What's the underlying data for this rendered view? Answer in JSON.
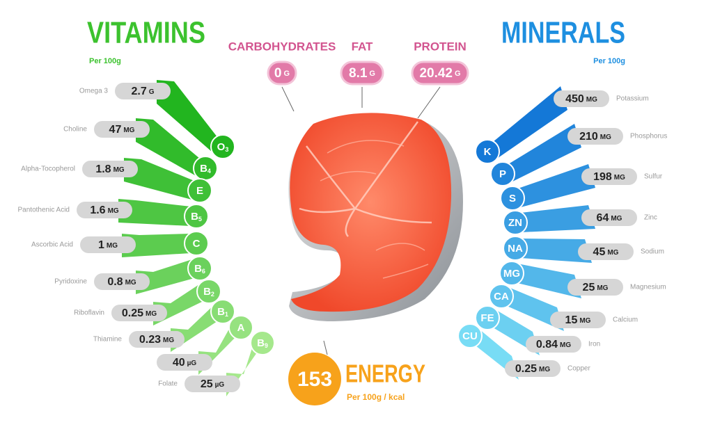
{
  "header": {
    "vitamins_title": "VITAMINS",
    "vitamins_subtitle": "Per 100g",
    "minerals_title": "MINERALS",
    "minerals_subtitle": "Per 100g"
  },
  "macros": [
    {
      "label": "CARBOHYDRATES",
      "amount": "0",
      "unit": "G"
    },
    {
      "label": "FAT",
      "amount": "8.1",
      "unit": "G"
    },
    {
      "label": "PROTEIN",
      "amount": "20.42",
      "unit": "G"
    }
  ],
  "energy": {
    "amount": "153",
    "label": "ENERGY",
    "subtitle": "Per 100g / kcal"
  },
  "vitamins": [
    {
      "name": "Omega 3",
      "amount": "2.7",
      "unit": "G",
      "symbol": "O",
      "sub": "3"
    },
    {
      "name": "Choline",
      "amount": "47",
      "unit": "MG",
      "symbol": "B",
      "sub": "4"
    },
    {
      "name": "Alpha-Tocopherol",
      "amount": "1.8",
      "unit": "MG",
      "symbol": "E"
    },
    {
      "name": "Pantothenic Acid",
      "amount": "1.6",
      "unit": "MG",
      "symbol": "B",
      "sub": "5"
    },
    {
      "name": "Ascorbic Acid",
      "amount": "1",
      "unit": "MG",
      "symbol": "C"
    },
    {
      "name": "Pyridoxine",
      "amount": "0.8",
      "unit": "MG",
      "symbol": "B",
      "sub": "6"
    },
    {
      "name": "Riboflavin",
      "amount": "0.25",
      "unit": "MG",
      "symbol": "B",
      "sub": "2"
    },
    {
      "name": "Thiamine",
      "amount": "0.23",
      "unit": "MG",
      "symbol": "B",
      "sub": "1"
    },
    {
      "amount": "40",
      "unit": "µG",
      "symbol": "A"
    },
    {
      "name": "Folate",
      "amount": "25",
      "unit": "µG",
      "symbol": "B",
      "sub": "9"
    }
  ],
  "minerals": [
    {
      "name": "Potassium",
      "amount": "450",
      "unit": "MG",
      "symbol": "K"
    },
    {
      "name": "Phosphorus",
      "amount": "210",
      "unit": "MG",
      "symbol": "P"
    },
    {
      "name": "Sulfur",
      "amount": "198",
      "unit": "MG",
      "symbol": "S"
    },
    {
      "name": "Zinc",
      "amount": "64",
      "unit": "MG",
      "symbol": "ZN"
    },
    {
      "name": "Sodium",
      "amount": "45",
      "unit": "MG",
      "symbol": "NA"
    },
    {
      "name": "Magnesium",
      "amount": "25",
      "unit": "MG",
      "symbol": "MG"
    },
    {
      "name": "Calcium",
      "amount": "15",
      "unit": "MG",
      "symbol": "CA"
    },
    {
      "name": "Iron",
      "amount": "0.84",
      "unit": "MG",
      "symbol": "FE"
    },
    {
      "name": "Copper",
      "amount": "0.25",
      "unit": "MG",
      "symbol": "CU"
    }
  ]
}
